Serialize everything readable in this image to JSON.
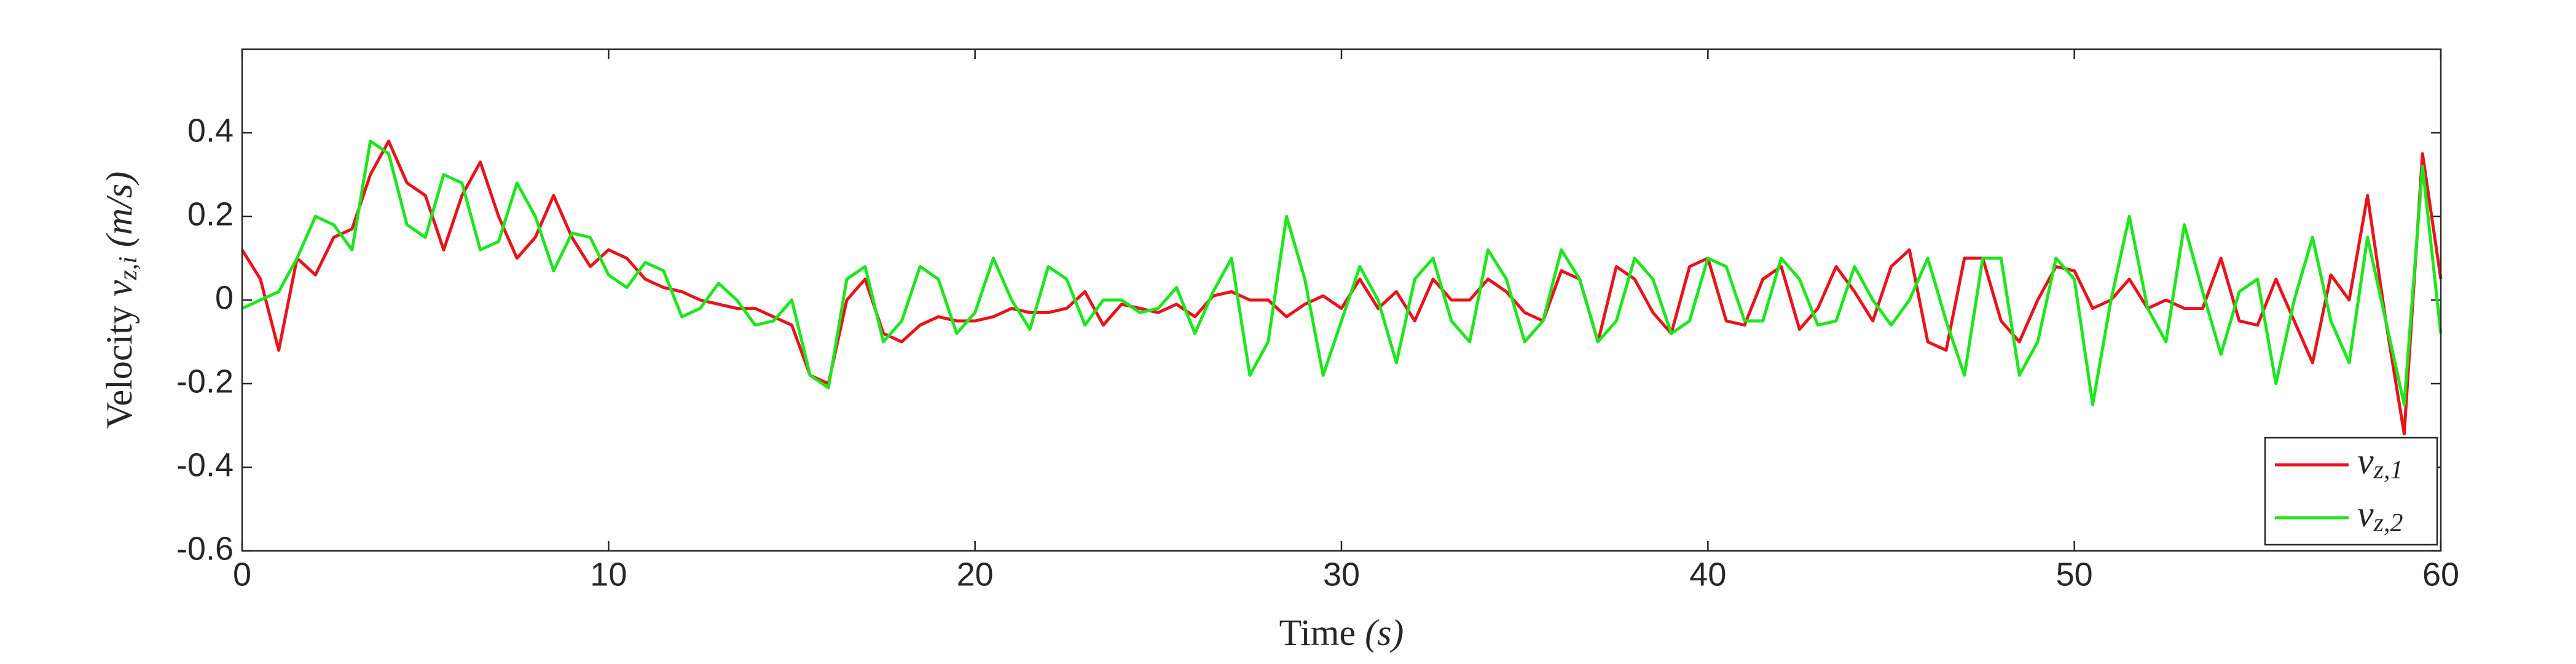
{
  "chart_data": {
    "type": "line",
    "xlabel": {
      "text": "Time",
      "symbol": "(s)"
    },
    "ylabel": {
      "text": "Velocity",
      "symbol": "v",
      "subscript": "z,i",
      "unit": "(m/s)"
    },
    "x": [
      0,
      0.5,
      1,
      1.5,
      2,
      2.5,
      3,
      3.5,
      4,
      4.5,
      5,
      5.5,
      6,
      6.5,
      7,
      7.5,
      8,
      8.5,
      9,
      9.5,
      10,
      10.5,
      11,
      11.5,
      12,
      12.5,
      13,
      13.5,
      14,
      14.5,
      15,
      15.5,
      16,
      16.5,
      17,
      17.5,
      18,
      18.5,
      19,
      19.5,
      20,
      20.5,
      21,
      21.5,
      22,
      22.5,
      23,
      23.5,
      24,
      24.5,
      25,
      25.5,
      26,
      26.5,
      27,
      27.5,
      28,
      28.5,
      29,
      29.5,
      30,
      30.5,
      31,
      31.5,
      32,
      32.5,
      33,
      33.5,
      34,
      34.5,
      35,
      35.5,
      36,
      36.5,
      37,
      37.5,
      38,
      38.5,
      39,
      39.5,
      40,
      40.5,
      41,
      41.5,
      42,
      42.5,
      43,
      43.5,
      44,
      44.5,
      45,
      45.5,
      46,
      46.5,
      47,
      47.5,
      48,
      48.5,
      49,
      49.5,
      50,
      50.5,
      51,
      51.5,
      52,
      52.5,
      53,
      53.5,
      54,
      54.5,
      55,
      55.5,
      56,
      56.5,
      57,
      57.5,
      58,
      58.5,
      59,
      59.5,
      60
    ],
    "series": [
      {
        "name": "v",
        "subscript": "z,1",
        "color": "#e8141b",
        "values": [
          0.12,
          0.05,
          -0.12,
          0.1,
          0.06,
          0.15,
          0.17,
          0.3,
          0.38,
          0.28,
          0.25,
          0.12,
          0.25,
          0.33,
          0.2,
          0.1,
          0.15,
          0.25,
          0.15,
          0.08,
          0.12,
          0.1,
          0.05,
          0.03,
          0.02,
          0,
          -0.01,
          -0.02,
          -0.02,
          -0.04,
          -0.06,
          -0.18,
          -0.2,
          0,
          0.05,
          -0.08,
          -0.1,
          -0.06,
          -0.04,
          -0.05,
          -0.05,
          -0.04,
          -0.02,
          -0.03,
          -0.03,
          -0.02,
          0.02,
          -0.06,
          -0.01,
          -0.02,
          -0.03,
          -0.01,
          -0.04,
          0.01,
          0.02,
          0,
          0,
          -0.04,
          -0.01,
          0.01,
          -0.02,
          0.05,
          -0.02,
          0.02,
          -0.05,
          0.05,
          0,
          0,
          0.05,
          0.02,
          -0.03,
          -0.05,
          0.07,
          0.05,
          -0.1,
          0.08,
          0.05,
          -0.03,
          -0.08,
          0.08,
          0.1,
          -0.05,
          -0.06,
          0.05,
          0.08,
          -0.07,
          -0.02,
          0.08,
          0.02,
          -0.05,
          0.08,
          0.12,
          -0.1,
          -0.12,
          0.1,
          0.1,
          -0.05,
          -0.1,
          0,
          0.08,
          0.07,
          -0.02,
          0,
          0.05,
          -0.02,
          0,
          -0.02,
          -0.02,
          0.1,
          -0.05,
          -0.06,
          0.05,
          -0.05,
          -0.15,
          0.06,
          0,
          0.25,
          -0.05,
          -0.32,
          0.35,
          0.05
        ]
      },
      {
        "name": "v",
        "subscript": "z,2",
        "color": "#1ee61e",
        "values": [
          -0.02,
          0,
          0.02,
          0.1,
          0.2,
          0.18,
          0.12,
          0.38,
          0.35,
          0.18,
          0.15,
          0.3,
          0.28,
          0.12,
          0.14,
          0.28,
          0.2,
          0.07,
          0.16,
          0.15,
          0.06,
          0.03,
          0.09,
          0.07,
          -0.04,
          -0.02,
          0.04,
          0,
          -0.06,
          -0.05,
          0,
          -0.18,
          -0.21,
          0.05,
          0.08,
          -0.1,
          -0.05,
          0.08,
          0.05,
          -0.08,
          -0.03,
          0.1,
          0,
          -0.07,
          0.08,
          0.05,
          -0.06,
          0,
          0,
          -0.03,
          -0.02,
          0.03,
          -0.08,
          0.02,
          0.1,
          -0.18,
          -0.1,
          0.2,
          0.05,
          -0.18,
          -0.05,
          0.08,
          0,
          -0.15,
          0.05,
          0.1,
          -0.05,
          -0.1,
          0.12,
          0.05,
          -0.1,
          -0.05,
          0.12,
          0.05,
          -0.1,
          -0.05,
          0.1,
          0.05,
          -0.08,
          -0.05,
          0.1,
          0.08,
          -0.05,
          -0.05,
          0.1,
          0.05,
          -0.06,
          -0.05,
          0.08,
          0,
          -0.06,
          0,
          0.1,
          -0.05,
          -0.18,
          0.1,
          0.1,
          -0.18,
          -0.1,
          0.1,
          0.05,
          -0.25,
          0,
          0.2,
          -0.02,
          -0.1,
          0.18,
          0.02,
          -0.13,
          0.02,
          0.05,
          -0.2,
          0,
          0.15,
          -0.05,
          -0.15,
          0.15,
          -0.05,
          -0.25,
          0.32,
          -0.08
        ]
      }
    ],
    "xlim": [
      0,
      60
    ],
    "xticks": [
      0,
      10,
      20,
      30,
      40,
      50,
      60
    ],
    "ylim": [
      -0.6,
      0.6
    ],
    "yticks": [
      -0.6,
      -0.4,
      -0.2,
      0,
      0.2,
      0.4
    ],
    "grid": false,
    "legend": "lower right"
  }
}
